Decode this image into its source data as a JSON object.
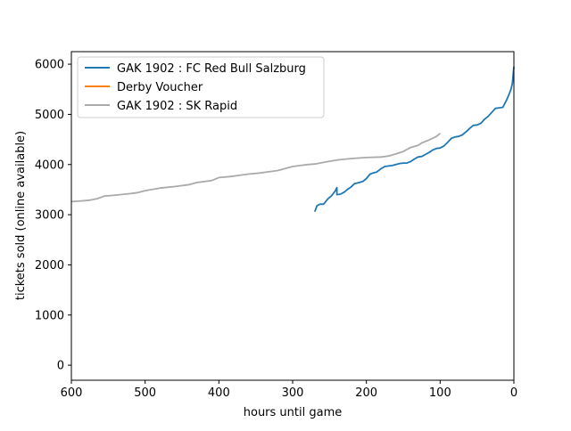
{
  "chart_data": {
    "type": "line",
    "title": "",
    "xlabel": "hours until game",
    "ylabel": "tickets sold (online available)",
    "xlim": [
      600,
      0
    ],
    "ylim": [
      -300,
      6250
    ],
    "x_reversed": true,
    "xticks": [
      600,
      500,
      400,
      300,
      200,
      100,
      0
    ],
    "yticks": [
      0,
      1000,
      2000,
      3000,
      4000,
      5000,
      6000
    ],
    "grid": false,
    "legend_position": "upper-left",
    "series": [
      {
        "name": "GAK 1902 : FC Red Bull Salzburg",
        "color": "#1f77b4",
        "x": [
          270,
          267,
          263,
          258,
          252,
          247,
          242,
          240,
          240,
          235,
          230,
          226,
          221,
          216,
          210,
          205,
          200,
          195,
          191,
          186,
          180,
          175,
          170,
          165,
          160,
          155,
          150,
          145,
          140,
          135,
          130,
          125,
          120,
          115,
          110,
          105,
          100,
          95,
          90,
          85,
          80,
          75,
          70,
          65,
          60,
          55,
          50,
          45,
          40,
          35,
          30,
          25,
          20,
          15,
          10,
          8,
          6,
          4,
          2,
          1,
          0
        ],
        "y": [
          3060,
          3180,
          3210,
          3210,
          3320,
          3380,
          3480,
          3540,
          3400,
          3410,
          3450,
          3500,
          3550,
          3620,
          3640,
          3660,
          3720,
          3810,
          3830,
          3850,
          3920,
          3960,
          3970,
          3980,
          4000,
          4020,
          4030,
          4030,
          4060,
          4110,
          4150,
          4160,
          4200,
          4240,
          4290,
          4320,
          4330,
          4370,
          4440,
          4520,
          4550,
          4560,
          4590,
          4650,
          4720,
          4780,
          4790,
          4820,
          4900,
          4960,
          5040,
          5120,
          5130,
          5140,
          5280,
          5350,
          5420,
          5500,
          5620,
          5800,
          5950
        ]
      },
      {
        "name": "Derby Voucher",
        "color": "#ff7f0e",
        "x": [],
        "y": []
      },
      {
        "name": "GAK 1902 : SK Rapid",
        "color": "#aaaaaa",
        "x": [
          600,
          590,
          575,
          565,
          555,
          540,
          520,
          510,
          500,
          480,
          460,
          440,
          430,
          410,
          400,
          385,
          370,
          360,
          345,
          330,
          320,
          310,
          300,
          290,
          280,
          270,
          255,
          240,
          220,
          200,
          180,
          170,
          160,
          150,
          140,
          130,
          125,
          115,
          105,
          100
        ],
        "y": [
          3260,
          3270,
          3290,
          3320,
          3370,
          3390,
          3420,
          3440,
          3480,
          3530,
          3560,
          3600,
          3640,
          3680,
          3740,
          3760,
          3790,
          3810,
          3830,
          3860,
          3880,
          3920,
          3960,
          3980,
          4000,
          4010,
          4050,
          4090,
          4120,
          4140,
          4150,
          4170,
          4210,
          4260,
          4340,
          4380,
          4430,
          4490,
          4560,
          4620
        ]
      }
    ]
  }
}
